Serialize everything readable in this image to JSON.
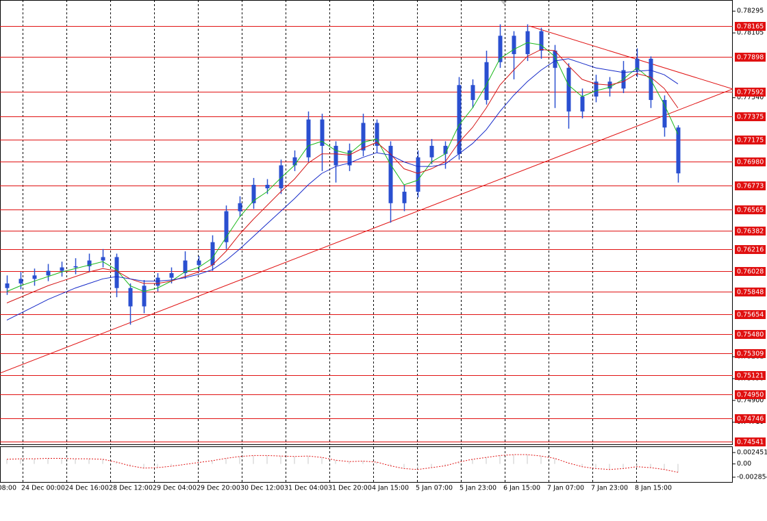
{
  "chart_data": {
    "type": "candlestick",
    "color": "#2a4fd0",
    "xlim": [
      -0.5,
      53
    ],
    "ylim": [
      0.74511,
      0.78392
    ],
    "yticks": [
      0.78295,
      0.78105,
      {
        "value": 0.7754,
        "label": "0.77540"
      },
      0.75281,
      {
        "value": 0.7509,
        "label": "0.75090"
      },
      {
        "value": 0.749,
        "label": "0.74900"
      },
      {
        "value": 0.7471,
        "label": "0.74710"
      }
    ],
    "levels_color": "#e01010",
    "levels": [
      0.78165,
      0.77898,
      0.77592,
      0.77375,
      0.77175,
      {
        "value": 0.7698,
        "label": "0.76980"
      },
      0.76773,
      0.76565,
      0.76382,
      0.76216,
      0.76028,
      0.75848,
      0.75654,
      {
        "value": 0.7548,
        "label": "0.75480"
      },
      0.75309,
      0.75121,
      {
        "value": 0.7495,
        "label": "0.74950"
      },
      0.74746,
      0.74541
    ],
    "time_labels": [
      "08:00",
      "24 Dec 00:00",
      "24 Dec 16:00",
      "28 Dec 12:00",
      "29 Dec 04:00",
      "29 Dec 20:00",
      "30 Dec 12:00",
      "31 Dec 04:00",
      "31 Dec 20:00",
      "4 Jan 15:00",
      "5 Jan 07:00",
      "5 Jan 23:00",
      "6 Jan 15:00",
      "7 Jan 07:00",
      "7 Jan 23:00",
      "8 Jan 15:00"
    ],
    "open": [
      0.7588,
      0.7592,
      0.7596,
      0.7599,
      0.7603,
      0.7606,
      0.7607,
      0.7612,
      0.7615,
      0.7588,
      0.7572,
      0.759,
      0.7597,
      0.7601,
      0.7612,
      0.7608,
      0.7628,
      0.7655,
      0.7662,
      0.7678,
      0.7675,
      0.7695,
      0.7702,
      0.7735,
      0.7712,
      0.7695,
      0.7708,
      0.7732,
      0.7712,
      0.7662,
      0.7672,
      0.7702,
      0.7712,
      0.7705,
      0.7765,
      0.7752,
      0.7785,
      0.7808,
      0.7792,
      0.7812,
      0.7795,
      0.778,
      0.7742,
      0.7755,
      0.7768,
      0.7762,
      0.7778,
      0.7788,
      0.7752,
      0.7728
    ],
    "high": [
      0.7599,
      0.7602,
      0.7605,
      0.7609,
      0.7611,
      0.7614,
      0.7618,
      0.7622,
      0.7618,
      0.7592,
      0.7595,
      0.7601,
      0.7606,
      0.762,
      0.7616,
      0.7634,
      0.766,
      0.7668,
      0.7684,
      0.7683,
      0.77,
      0.7708,
      0.7742,
      0.774,
      0.7716,
      0.7714,
      0.774,
      0.7735,
      0.7716,
      0.7678,
      0.7708,
      0.7718,
      0.7716,
      0.7772,
      0.777,
      0.7795,
      0.7818,
      0.7812,
      0.7818,
      0.7815,
      0.78,
      0.7784,
      0.7762,
      0.7774,
      0.7772,
      0.7786,
      0.7797,
      0.779,
      0.7756,
      0.773
    ],
    "low": [
      0.7582,
      0.7587,
      0.759,
      0.7594,
      0.7598,
      0.76,
      0.7602,
      0.7606,
      0.758,
      0.7556,
      0.7566,
      0.7585,
      0.7592,
      0.7596,
      0.7602,
      0.7603,
      0.7622,
      0.765,
      0.7657,
      0.767,
      0.767,
      0.769,
      0.7698,
      0.769,
      0.768,
      0.769,
      0.7703,
      0.7706,
      0.7645,
      0.7655,
      0.7667,
      0.7696,
      0.7692,
      0.77,
      0.7745,
      0.7748,
      0.778,
      0.777,
      0.7786,
      0.7788,
      0.7745,
      0.7727,
      0.7736,
      0.775,
      0.7755,
      0.7758,
      0.7772,
      0.7745,
      0.772,
      0.768
    ],
    "close": [
      0.7592,
      0.7596,
      0.7599,
      0.7603,
      0.7606,
      0.7607,
      0.7612,
      0.7615,
      0.7588,
      0.7572,
      0.759,
      0.7597,
      0.7601,
      0.7612,
      0.7608,
      0.7628,
      0.7655,
      0.7662,
      0.7678,
      0.7675,
      0.7695,
      0.7702,
      0.7735,
      0.7712,
      0.7695,
      0.7708,
      0.7732,
      0.7712,
      0.7662,
      0.7672,
      0.7702,
      0.7712,
      0.7705,
      0.7765,
      0.7752,
      0.7785,
      0.7808,
      0.7792,
      0.7812,
      0.7795,
      0.778,
      0.7742,
      0.7755,
      0.7768,
      0.7762,
      0.7778,
      0.7788,
      0.7752,
      0.7728,
      0.7688
    ],
    "moving_averages": [
      {
        "color": "#18b818",
        "values": [
          0.7585,
          0.759,
          0.7594,
          0.7598,
          0.7602,
          0.7605,
          0.7608,
          0.7611,
          0.7604,
          0.759,
          0.7585,
          0.7588,
          0.7594,
          0.7602,
          0.7606,
          0.7614,
          0.7632,
          0.765,
          0.7664,
          0.7672,
          0.7684,
          0.7695,
          0.7712,
          0.7716,
          0.7708,
          0.7705,
          0.7715,
          0.7718,
          0.7696,
          0.7678,
          0.7682,
          0.7698,
          0.7705,
          0.773,
          0.7745,
          0.7765,
          0.7788,
          0.7796,
          0.7802,
          0.78,
          0.779,
          0.7765,
          0.7755,
          0.776,
          0.7763,
          0.777,
          0.778,
          0.777,
          0.7748,
          0.7722
        ]
      },
      {
        "color": "#d41414",
        "values": [
          0.7575,
          0.758,
          0.7585,
          0.759,
          0.7594,
          0.7598,
          0.7602,
          0.7605,
          0.7603,
          0.7596,
          0.7592,
          0.7592,
          0.7594,
          0.7598,
          0.7602,
          0.7608,
          0.762,
          0.7635,
          0.7648,
          0.766,
          0.7672,
          0.7683,
          0.7697,
          0.7705,
          0.7705,
          0.7704,
          0.771,
          0.7715,
          0.7705,
          0.7692,
          0.7688,
          0.7692,
          0.7698,
          0.7715,
          0.7728,
          0.7745,
          0.7765,
          0.7778,
          0.779,
          0.7796,
          0.7795,
          0.7782,
          0.777,
          0.7766,
          0.7765,
          0.7768,
          0.7775,
          0.7772,
          0.7762,
          0.7745
        ]
      },
      {
        "color": "#1428c8",
        "values": [
          0.756,
          0.7566,
          0.7572,
          0.7578,
          0.7583,
          0.7588,
          0.7592,
          0.7596,
          0.7598,
          0.7596,
          0.7594,
          0.7594,
          0.7595,
          0.7597,
          0.76,
          0.7604,
          0.7612,
          0.7622,
          0.7633,
          0.7644,
          0.7655,
          0.7666,
          0.7678,
          0.7688,
          0.7694,
          0.7697,
          0.7702,
          0.7706,
          0.7704,
          0.7698,
          0.7694,
          0.7694,
          0.7696,
          0.7705,
          0.7714,
          0.7726,
          0.7742,
          0.7756,
          0.7768,
          0.7778,
          0.7786,
          0.7788,
          0.7784,
          0.778,
          0.7778,
          0.7776,
          0.7777,
          0.7778,
          0.7774,
          0.7766
        ]
      }
    ],
    "trendlines": [
      {
        "color": "#e01010",
        "x": [
          -0.5,
          53
        ],
        "y": [
          0.75138,
          0.77616
        ]
      },
      {
        "color": "#e01010",
        "x": [
          38.15,
          53
        ],
        "y": [
          0.78165,
          0.77616
        ]
      }
    ],
    "oscillator": {
      "color": "#e01010",
      "ylim": [
        -0.004033,
        0.00363
      ],
      "yticks": [
        0.002451,
        {
          "value": 0,
          "label": "0.00"
        },
        -0.002854
      ],
      "values": [
        0.001,
        0.0011,
        0.0011,
        0.0012,
        0.0012,
        0.0011,
        0.0011,
        0.001,
        0.0004,
        -0.0004,
        -0.0009,
        -0.0008,
        -0.0005,
        -0.0001,
        0.0003,
        0.0007,
        0.0012,
        0.0016,
        0.0018,
        0.0018,
        0.0017,
        0.0016,
        0.0017,
        0.0014,
        0.0008,
        0.0005,
        0.0006,
        0.0004,
        -0.0004,
        -0.001,
        -0.0012,
        -0.0008,
        -0.0004,
        0.0004,
        0.001,
        0.0014,
        0.0018,
        0.002,
        0.002,
        0.0017,
        0.0012,
        0.0002,
        -0.0006,
        -0.001,
        -0.0012,
        -0.001,
        -0.0006,
        -0.0008,
        -0.0012,
        -0.0018
      ]
    }
  }
}
